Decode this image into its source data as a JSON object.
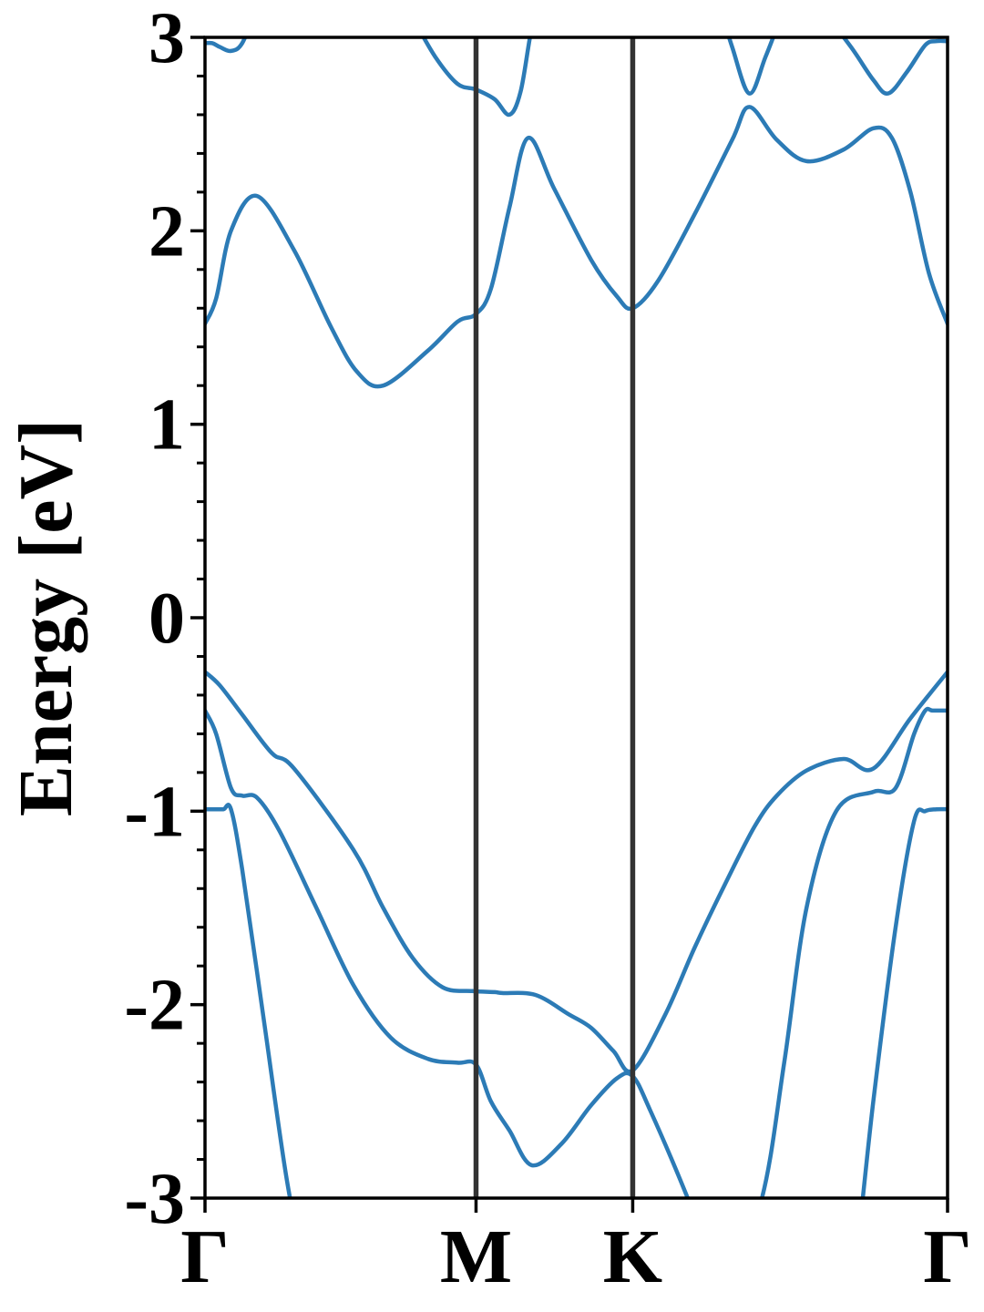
{
  "chart_data": {
    "type": "line",
    "title": "",
    "xlabel": "",
    "ylabel": "Energy [eV]",
    "ylim": [
      -3,
      3
    ],
    "xlim": [
      0,
      1
    ],
    "grid": false,
    "legend": "none",
    "ytick_values": [
      -3,
      -2,
      -1,
      0,
      1,
      2,
      3
    ],
    "yticks": [
      "-3",
      "-2",
      "-1",
      "0",
      "1",
      "2",
      "3"
    ],
    "yminor_step": 0.2,
    "kpoints": [
      {
        "label": "Γ",
        "x": 0.0
      },
      {
        "label": "M",
        "x": 0.365
      },
      {
        "label": "K",
        "x": 0.576
      },
      {
        "label": "Γ",
        "x": 1.0
      }
    ],
    "colors": {
      "band": "#2c7bb6",
      "kline": "#333333",
      "axis": "#000000"
    },
    "series": [
      {
        "x": [
          0.0,
          0.015,
          0.035,
          0.07,
          0.12,
          0.17,
          0.205,
          0.24,
          0.3,
          0.34,
          0.365,
          0.385,
          0.41,
          0.435,
          0.47,
          0.52,
          0.555,
          0.576,
          0.61,
          0.66,
          0.71,
          0.733,
          0.77,
          0.81,
          0.86,
          0.9,
          0.925,
          0.95,
          0.975,
          1.0
        ],
        "y": [
          1.52,
          1.65,
          2.0,
          2.18,
          1.9,
          1.5,
          1.27,
          1.2,
          1.38,
          1.53,
          1.57,
          1.7,
          2.12,
          2.48,
          2.22,
          1.85,
          1.66,
          1.6,
          1.74,
          2.09,
          2.47,
          2.64,
          2.47,
          2.36,
          2.42,
          2.53,
          2.48,
          2.2,
          1.78,
          1.52
        ]
      },
      {
        "x": [
          0.0,
          0.02,
          0.05,
          0.09,
          0.12,
          0.2,
          0.24,
          0.28,
          0.32,
          0.36,
          0.39,
          0.4,
          0.445,
          0.49,
          0.52,
          0.55,
          0.576,
          0.62,
          0.66,
          0.7,
          0.74,
          0.77,
          0.81,
          0.86,
          0.9,
          0.95,
          1.0
        ],
        "y": [
          -0.28,
          -0.35,
          -0.5,
          -0.7,
          -0.78,
          -1.2,
          -1.5,
          -1.76,
          -1.91,
          -1.93,
          -1.935,
          -1.94,
          -1.95,
          -2.05,
          -2.12,
          -2.24,
          -2.34,
          -2.05,
          -1.7,
          -1.38,
          -1.08,
          -0.92,
          -0.79,
          -0.73,
          -0.78,
          -0.52,
          -0.28
        ]
      },
      {
        "x": [
          0.0,
          0.015,
          0.035,
          0.05,
          0.07,
          0.1,
          0.15,
          0.2,
          0.25,
          0.3,
          0.34,
          0.365,
          0.385,
          0.41,
          0.44,
          0.48,
          0.52,
          0.555,
          0.576,
          0.6,
          0.65,
          0.7,
          0.75,
          0.78,
          0.81,
          0.85,
          0.9,
          0.93,
          0.955,
          0.97,
          0.98,
          1.0
        ],
        "y": [
          -0.48,
          -0.6,
          -0.88,
          -0.92,
          -0.93,
          -1.1,
          -1.5,
          -1.9,
          -2.17,
          -2.28,
          -2.3,
          -2.31,
          -2.5,
          -2.65,
          -2.83,
          -2.72,
          -2.52,
          -2.38,
          -2.37,
          -2.55,
          -3.0,
          -3.5,
          -3.0,
          -2.3,
          -1.5,
          -1.0,
          -0.9,
          -0.88,
          -0.6,
          -0.48,
          -0.48,
          -0.48
        ]
      },
      {
        "x": [
          0.0,
          0.015,
          0.025,
          0.035,
          0.05,
          0.08,
          0.11,
          0.14,
          0.16
        ],
        "y": [
          -0.99,
          -0.99,
          -0.99,
          -0.99,
          -1.3,
          -2.1,
          -2.9,
          -3.5,
          -3.9
        ]
      },
      {
        "x": [
          0.84,
          0.87,
          0.9,
          0.93,
          0.955,
          0.97,
          0.985,
          1.0
        ],
        "y": [
          -3.9,
          -3.5,
          -2.5,
          -1.6,
          -1.05,
          -1.0,
          -0.99,
          -0.99
        ]
      },
      {
        "x": [
          0.0,
          0.01,
          0.02,
          0.035,
          0.05,
          0.07
        ],
        "y": [
          2.97,
          2.97,
          2.95,
          2.93,
          2.97,
          3.15
        ]
      },
      {
        "x": [
          0.28,
          0.31,
          0.34,
          0.365,
          0.39,
          0.41,
          0.425,
          0.44,
          0.46
        ],
        "y": [
          3.1,
          2.9,
          2.76,
          2.73,
          2.68,
          2.6,
          2.72,
          3.05,
          3.4
        ]
      },
      {
        "x": [
          0.69,
          0.71,
          0.733,
          0.755,
          0.78
        ],
        "y": [
          3.2,
          2.95,
          2.71,
          2.9,
          3.15
        ]
      },
      {
        "x": [
          0.83,
          0.87,
          0.9,
          0.92,
          0.945,
          0.97,
          0.985,
          1.0
        ],
        "y": [
          3.15,
          2.95,
          2.78,
          2.71,
          2.82,
          2.96,
          2.98,
          2.98
        ]
      }
    ]
  }
}
